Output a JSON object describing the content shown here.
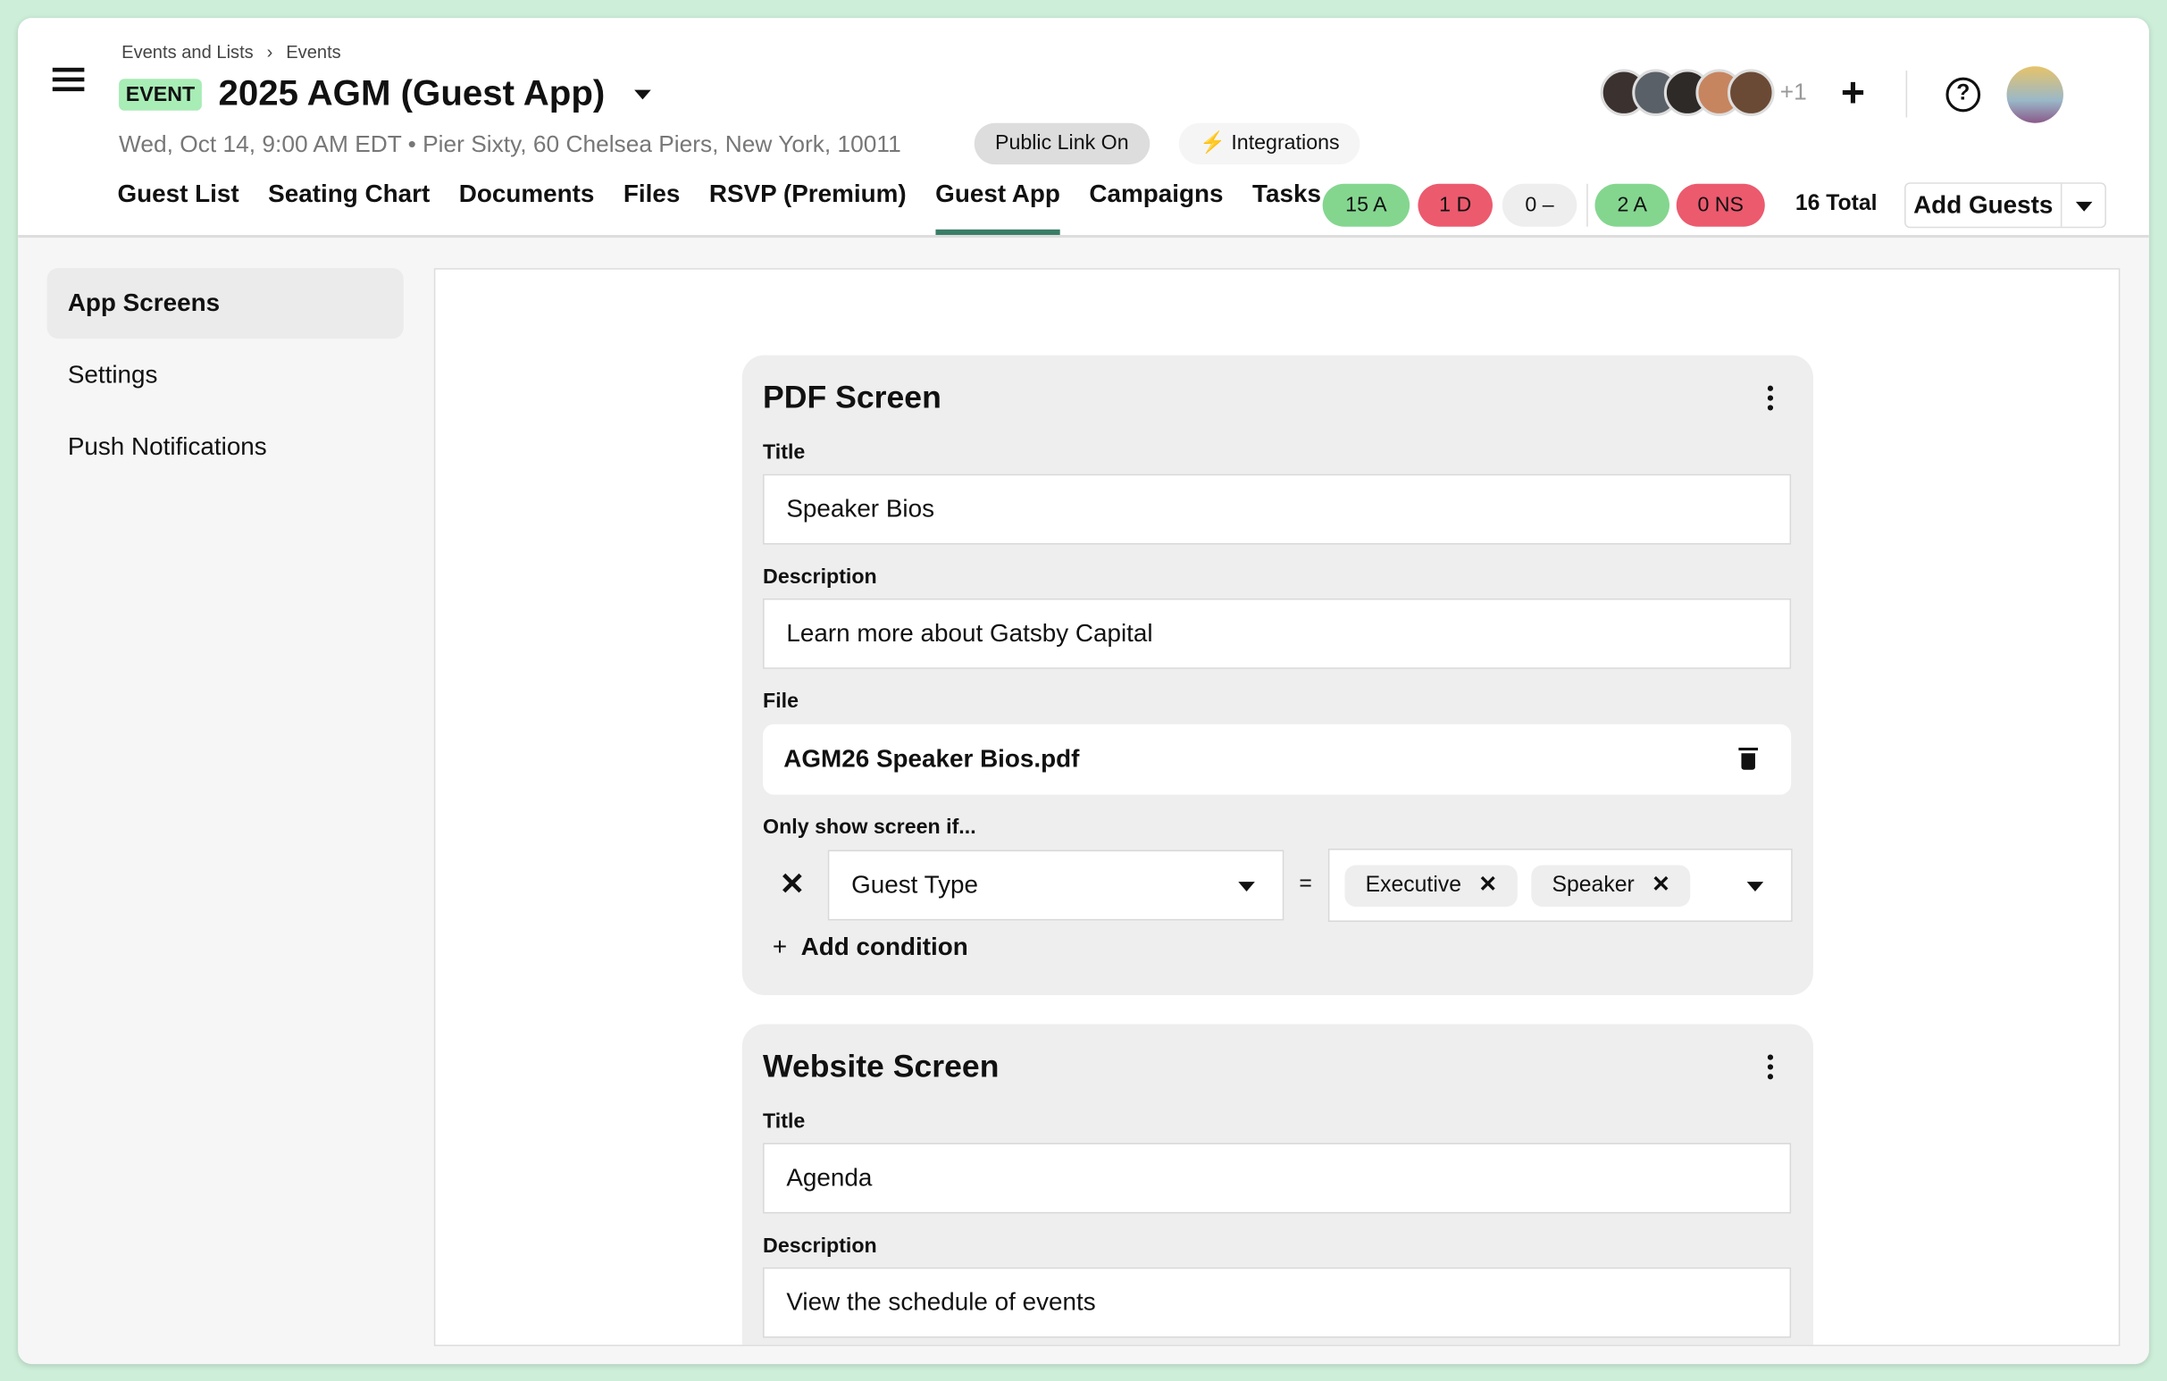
{
  "breadcrumb": [
    "Events and Lists",
    "Events"
  ],
  "event_badge": "EVENT",
  "event_title": "2025 AGM (Guest App)",
  "event_subtitle": "Wed, Oct 14, 9:00 AM EDT • Pier Sixty, 60 Chelsea Piers, New York, 10011",
  "public_link_label": "Public Link On",
  "integrations_label": "Integrations",
  "tabs": [
    {
      "label": "Guest List"
    },
    {
      "label": "Seating Chart"
    },
    {
      "label": "Documents"
    },
    {
      "label": "Files"
    },
    {
      "label": "RSVP (Premium)"
    },
    {
      "label": "Guest App",
      "active": true
    },
    {
      "label": "Campaigns"
    },
    {
      "label": "Tasks"
    }
  ],
  "counts": [
    {
      "label": "15 A",
      "color": "#84d68f"
    },
    {
      "label": "1 D",
      "color": "#ec5a6e"
    },
    {
      "label": "0 –",
      "color": "#eeeeee"
    },
    {
      "label": "2 A",
      "color": "#84d68f"
    },
    {
      "label": "0 NS",
      "color": "#ec5a6e"
    }
  ],
  "total_label": "16 Total",
  "add_guests_label": "Add Guests",
  "collaborators_more": "+1",
  "accent_color": "#3a7d67",
  "sidebar": {
    "items": [
      {
        "label": "App Screens",
        "active": true
      },
      {
        "label": "Settings"
      },
      {
        "label": "Push Notifications"
      }
    ]
  },
  "cards": [
    {
      "title": "PDF Screen",
      "title_label": "Title",
      "title_value": "Speaker Bios",
      "description_label": "Description",
      "description_value": "Learn more about Gatsby Capital",
      "file_label": "File",
      "file_name": "AGM26 Speaker Bios.pdf",
      "condition_label": "Only show screen if...",
      "condition_field": "Guest Type",
      "condition_operator": "=",
      "condition_values": [
        "Executive",
        "Speaker"
      ],
      "add_condition_label": "Add condition"
    },
    {
      "title": "Website Screen",
      "title_label": "Title",
      "title_value": "Agenda",
      "description_label": "Description",
      "description_value": "View the schedule of events"
    }
  ]
}
